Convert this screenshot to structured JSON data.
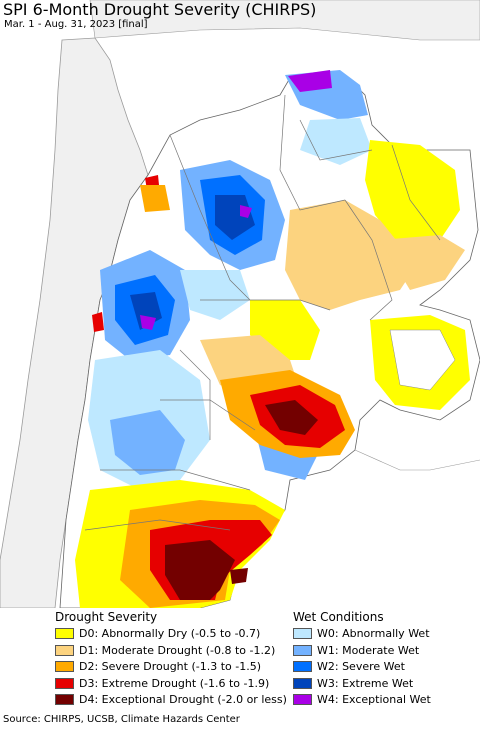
{
  "header": {
    "title": "SPI 6-Month Drought Severity (CHIRPS)",
    "subtitle": "Mar. 1 - Aug. 31, 2023 [final]"
  },
  "legend": {
    "drought": {
      "heading": "Drought Severity",
      "items": [
        {
          "label": "D0: Abnormally Dry (-0.5 to -0.7)",
          "color": "#ffff00"
        },
        {
          "label": "D1: Moderate Drought (-0.8 to -1.2)",
          "color": "#fcd37f"
        },
        {
          "label": "D2: Severe Drought (-1.3 to -1.5)",
          "color": "#ffaa00"
        },
        {
          "label": "D3: Extreme Drought (-1.6 to -1.9)",
          "color": "#e60000"
        },
        {
          "label": "D4: Exceptional Drought (-2.0 or less)",
          "color": "#730000"
        }
      ]
    },
    "wet": {
      "heading": "Wet Conditions",
      "items": [
        {
          "label": "W0: Abnormally Wet",
          "color": "#bee8ff"
        },
        {
          "label": "W1: Moderate Wet",
          "color": "#73b2ff"
        },
        {
          "label": "W2: Severe Wet",
          "color": "#0070ff"
        },
        {
          "label": "W3: Extreme Wet",
          "color": "#0044bb"
        },
        {
          "label": "W4: Exceptional Wet",
          "color": "#a900e6"
        }
      ]
    }
  },
  "footer": {
    "source": "Source: CHIRPS, UCSB, Climate Hazards Center"
  }
}
